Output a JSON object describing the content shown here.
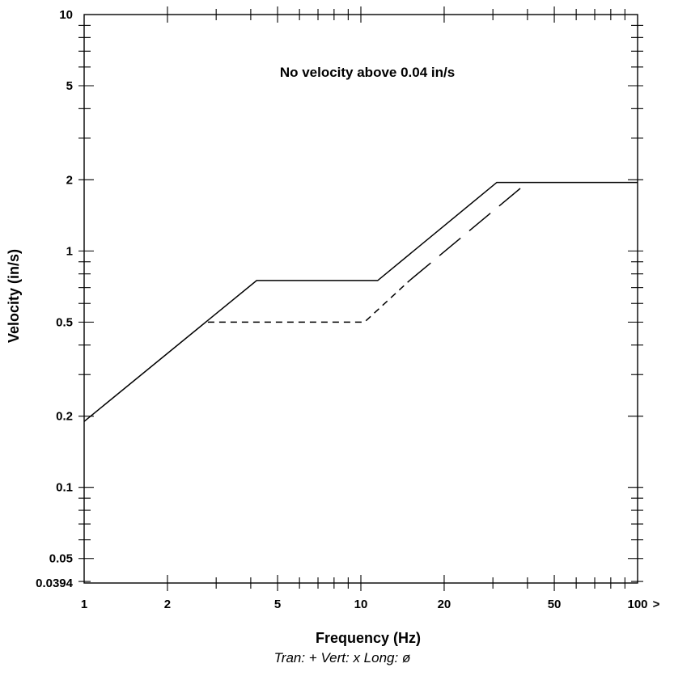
{
  "chart_data": {
    "type": "line",
    "title": "",
    "annotation": "No velocity above 0.04 in/s",
    "xlabel": "Frequency (Hz)",
    "ylabel": "Velocity (in/s)",
    "subtitle": "Tran: +  Vert: x  Long: ø",
    "x_scale": "log",
    "y_scale": "log",
    "xlim": [
      1,
      100
    ],
    "ylim": [
      0.0394,
      10
    ],
    "x_ticks": [
      {
        "value": 1,
        "label": "1"
      },
      {
        "value": 2,
        "label": "2"
      },
      {
        "value": 5,
        "label": "5"
      },
      {
        "value": 10,
        "label": "10"
      },
      {
        "value": 20,
        "label": "20"
      },
      {
        "value": 50,
        "label": "50"
      },
      {
        "value": 100,
        "label": "100"
      }
    ],
    "y_ticks": [
      {
        "value": 0.0394,
        "label": "0.0394"
      },
      {
        "value": 0.05,
        "label": "0.05"
      },
      {
        "value": 0.1,
        "label": "0.1"
      },
      {
        "value": 0.2,
        "label": "0.2"
      },
      {
        "value": 0.5,
        "label": "0.5"
      },
      {
        "value": 1,
        "label": "1"
      },
      {
        "value": 2,
        "label": "2"
      },
      {
        "value": 5,
        "label": "5"
      },
      {
        "value": 10,
        "label": "10"
      }
    ],
    "axis_marker": ">",
    "grid": false,
    "series": [
      {
        "style": "solid",
        "x": [
          1,
          4.2,
          11.5,
          31,
          100
        ],
        "y": [
          0.19,
          0.75,
          0.75,
          1.95,
          1.95
        ]
      },
      {
        "style": "longdash",
        "x": [
          15,
          40
        ],
        "y": [
          0.75,
          1.95
        ]
      },
      {
        "style": "shortdash",
        "x": [
          2.8,
          10.3,
          15
        ],
        "y": [
          0.5,
          0.5,
          0.75
        ]
      }
    ]
  }
}
